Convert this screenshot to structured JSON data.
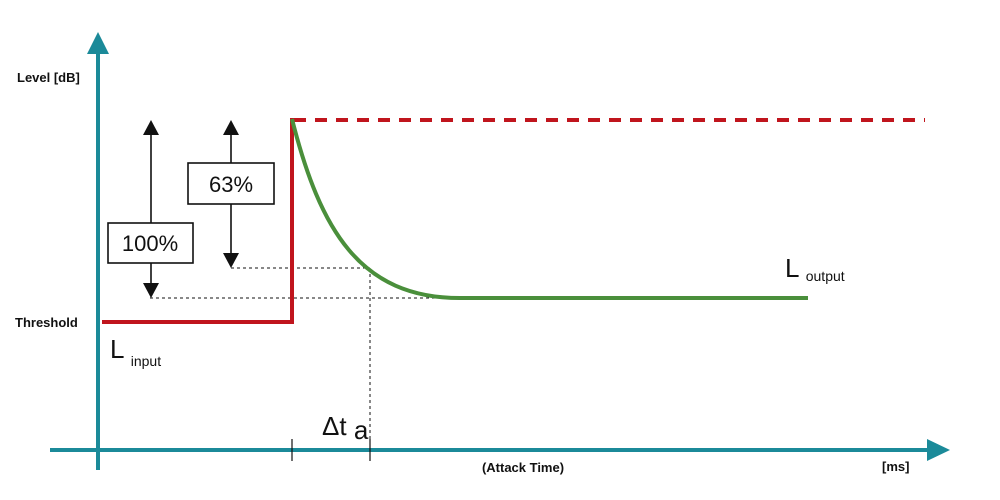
{
  "axes": {
    "y_label": "Level [dB]",
    "threshold_label": "Threshold",
    "x_caption": "(Attack Time)",
    "x_unit": "[ms]",
    "axis_color": "#1b8a99"
  },
  "markers": {
    "full_ratio": "100%",
    "attack_ratio": "63%"
  },
  "curves": {
    "input_label": "L",
    "input_sub": "input",
    "output_label": "L",
    "output_sub": "output",
    "input_color": "#c0151d",
    "output_color": "#4a8f3b"
  },
  "attack": {
    "symbol": "Δt",
    "sub": "a"
  }
}
